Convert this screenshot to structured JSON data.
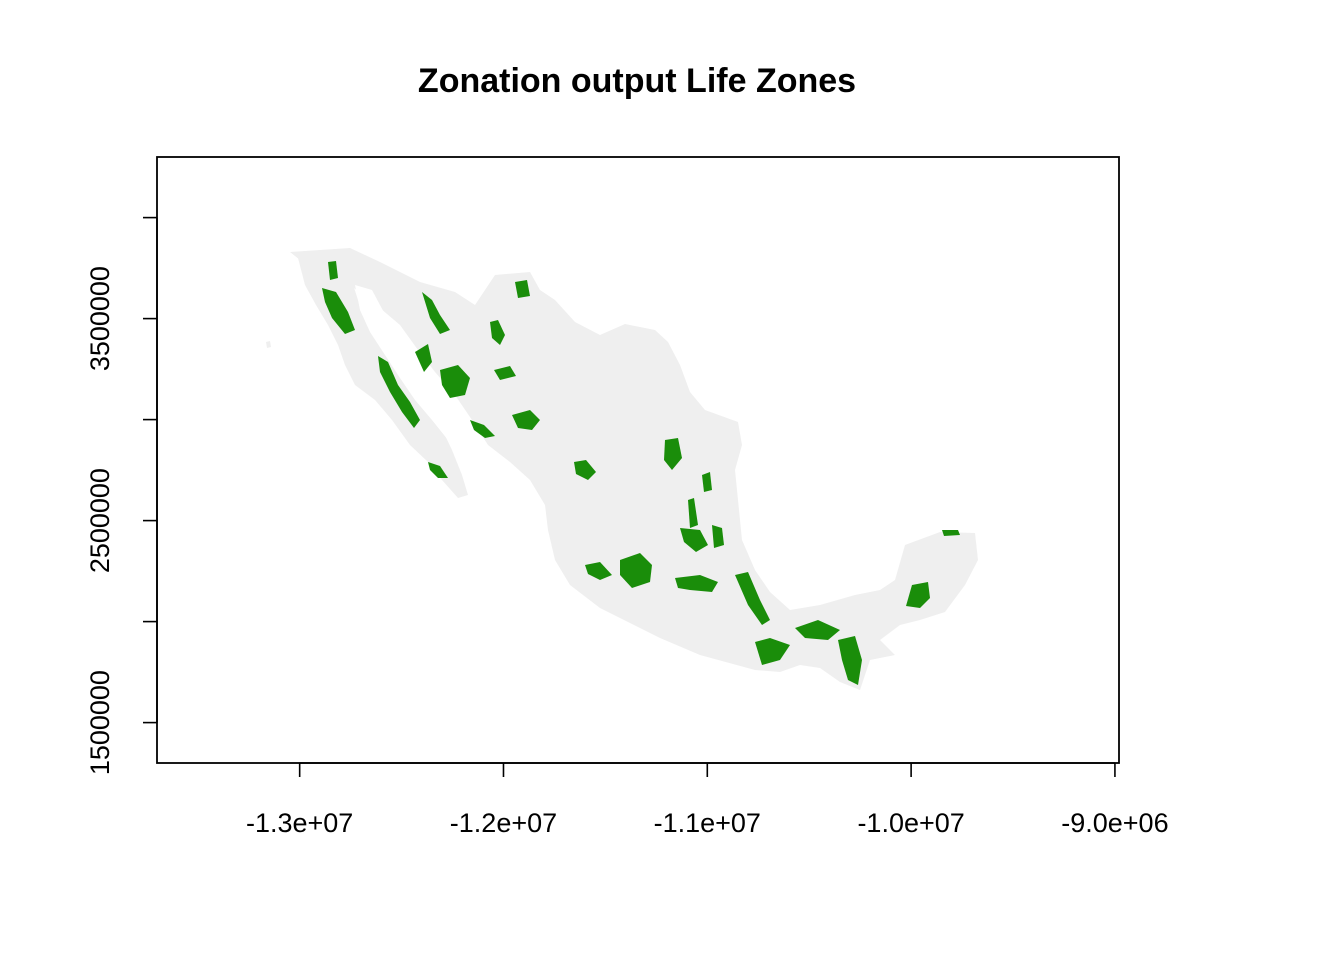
{
  "title": "Zonation output Life Zones",
  "colors": {
    "background": "#ffffff",
    "land": "#efefef",
    "priority_zone": "#1a8d0a",
    "axis": "#000000"
  },
  "map": {
    "x_range": [
      -13700000,
      -8980000
    ],
    "y_range": [
      1300000,
      4300000
    ],
    "x_ticks": [
      {
        "value": -13000000,
        "label": "-1.3e+07"
      },
      {
        "value": -12000000,
        "label": "-1.2e+07"
      },
      {
        "value": -11000000,
        "label": "-1.1e+07"
      },
      {
        "value": -10000000,
        "label": "-1.0e+07"
      },
      {
        "value": -9000000,
        "label": "-9.0e+06"
      }
    ],
    "y_ticks": [
      {
        "value": 1500000,
        "label": "1500000"
      },
      {
        "value": 2000000,
        "label": ""
      },
      {
        "value": 2500000,
        "label": "2500000"
      },
      {
        "value": 3000000,
        "label": ""
      },
      {
        "value": 3500000,
        "label": "3500000"
      },
      {
        "value": 4000000,
        "label": ""
      }
    ]
  }
}
